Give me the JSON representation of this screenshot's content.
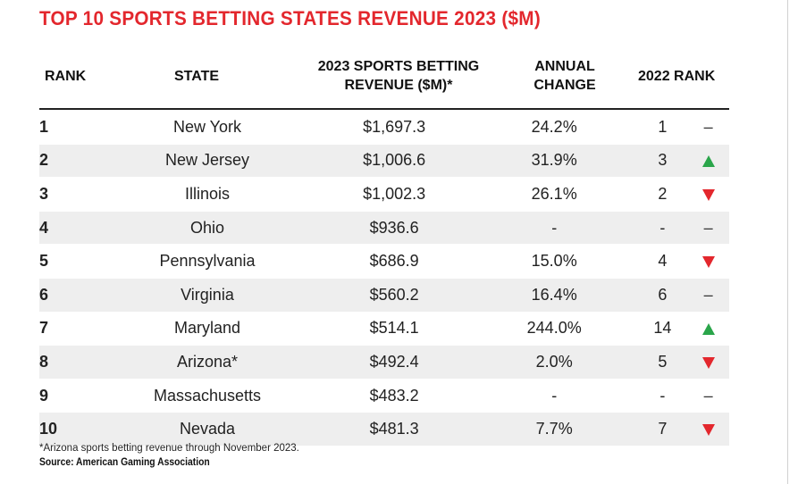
{
  "title": "TOP 10 SPORTS BETTING STATES REVENUE 2023 ($M)",
  "headers": {
    "rank": "RANK",
    "state": "STATE",
    "revenue_line1": "2023 SPORTS BETTING",
    "revenue_line2": "REVENUE ($M)*",
    "change_line1": "ANNUAL",
    "change_line2": "CHANGE",
    "rank_2022": "2022 RANK"
  },
  "colors": {
    "title": "#e3272d",
    "up": "#2aa54a",
    "down": "#e3272d",
    "row_alt": "#eeeeee"
  },
  "chart_data": {
    "type": "table",
    "title": "TOP 10 SPORTS BETTING STATES REVENUE 2023 ($M)",
    "columns": [
      "RANK",
      "STATE",
      "2023 SPORTS BETTING REVENUE ($M)*",
      "ANNUAL CHANGE",
      "2022 RANK"
    ],
    "rows": [
      {
        "rank": "1",
        "state": "New York",
        "revenue": "$1,697.3",
        "change": "24.2%",
        "rank_2022": "1",
        "trend": "same",
        "trend_icon": "dash-icon"
      },
      {
        "rank": "2",
        "state": "New Jersey",
        "revenue": "$1,006.6",
        "change": "31.9%",
        "rank_2022": "3",
        "trend": "up",
        "trend_icon": "triangle-up-icon"
      },
      {
        "rank": "3",
        "state": "Illinois",
        "revenue": "$1,002.3",
        "change": "26.1%",
        "rank_2022": "2",
        "trend": "down",
        "trend_icon": "triangle-down-icon"
      },
      {
        "rank": "4",
        "state": "Ohio",
        "revenue": "$936.6",
        "change": "-",
        "rank_2022": "-",
        "trend": "same",
        "trend_icon": "dash-icon"
      },
      {
        "rank": "5",
        "state": "Pennsylvania",
        "revenue": "$686.9",
        "change": "15.0%",
        "rank_2022": "4",
        "trend": "down",
        "trend_icon": "triangle-down-icon"
      },
      {
        "rank": "6",
        "state": "Virginia",
        "revenue": "$560.2",
        "change": "16.4%",
        "rank_2022": "6",
        "trend": "same",
        "trend_icon": "dash-icon"
      },
      {
        "rank": "7",
        "state": "Maryland",
        "revenue": "$514.1",
        "change": "244.0%",
        "rank_2022": "14",
        "trend": "up",
        "trend_icon": "triangle-up-icon"
      },
      {
        "rank": "8",
        "state": "Arizona*",
        "revenue": "$492.4",
        "change": "2.0%",
        "rank_2022": "5",
        "trend": "down",
        "trend_icon": "triangle-down-icon"
      },
      {
        "rank": "9",
        "state": "Massachusetts",
        "revenue": "$483.2",
        "change": "-",
        "rank_2022": "-",
        "trend": "same",
        "trend_icon": "dash-icon"
      },
      {
        "rank": "10",
        "state": "Nevada",
        "revenue": "$481.3",
        "change": "7.7%",
        "rank_2022": "7",
        "trend": "down",
        "trend_icon": "triangle-down-icon"
      }
    ]
  },
  "footnote": "*Arizona sports betting revenue through November 2023.",
  "source": "Source: American Gaming Association",
  "trend_dash": "–"
}
